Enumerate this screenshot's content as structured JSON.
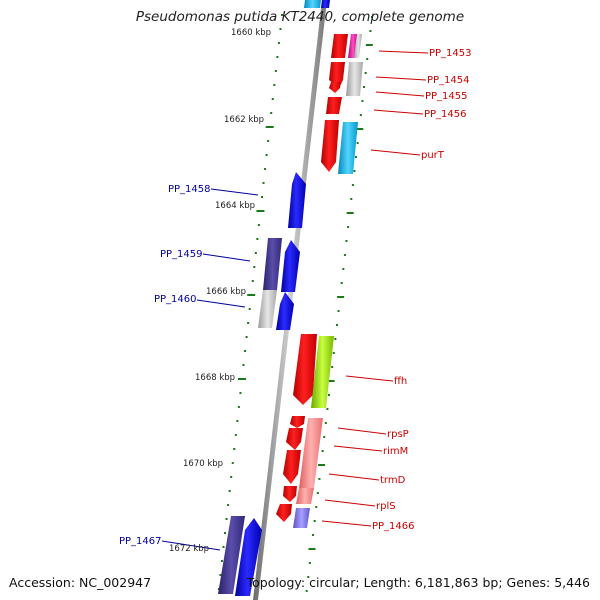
{
  "title": "Pseudomonas putida KT2440, complete genome",
  "footer": {
    "accession": "Accession: NC_002947",
    "summary": "Topology: circular; Length: 6,181,863 bp; Genes: 5,446"
  },
  "scale_labels": [
    "1660 kbp",
    "1662 kbp",
    "1664 kbp",
    "1666 kbp",
    "1668 kbp",
    "1670 kbp",
    "1672 kbp"
  ],
  "right_labels": [
    "PP_1453",
    "PP_1454",
    "PP_1455",
    "PP_1456",
    "purT",
    "ffh",
    "rpsP",
    "rimM",
    "trmD",
    "rplS",
    "PP_1466"
  ],
  "left_labels": [
    "PP_1458",
    "PP_1459",
    "PP_1460",
    "PP_1467"
  ],
  "colors": {
    "forward_cds": "#ee0000",
    "reverse_cds": "#0000ee",
    "backbone": "#999999",
    "tick": "#1a7a1a",
    "right_label": "#cc0000",
    "left_label": "#000099"
  }
}
